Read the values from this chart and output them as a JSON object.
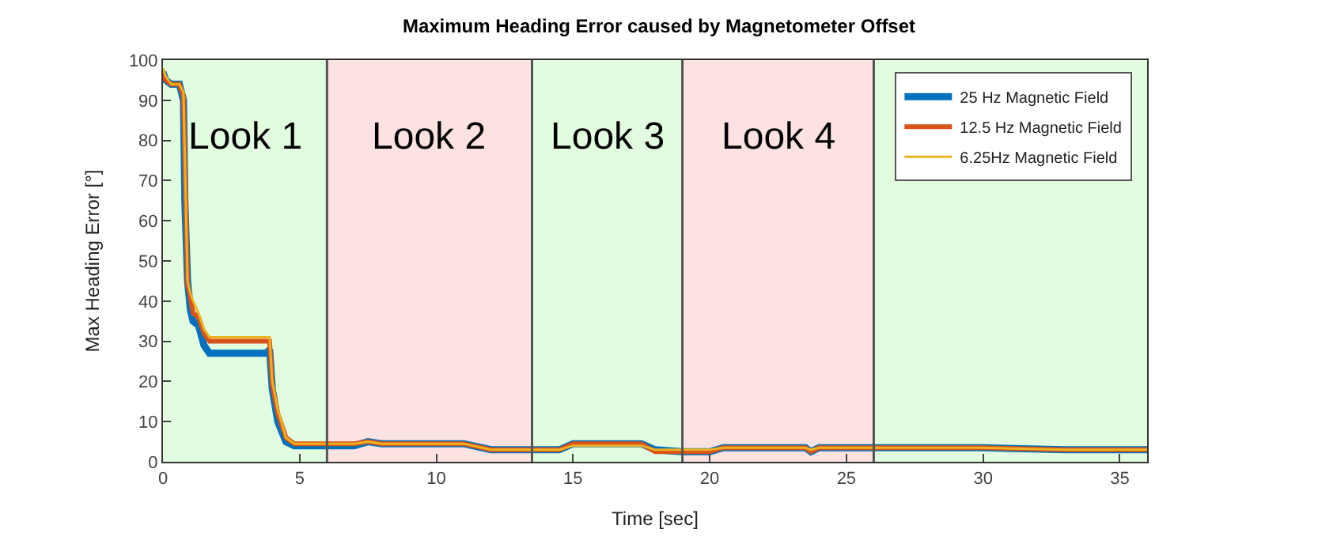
{
  "chart_data": {
    "type": "line",
    "title": "Maximum Heading Error caused by Magnetometer Offset",
    "xlabel": "Time [sec]",
    "ylabel": "Max Heading Error [°]",
    "xlim": [
      0,
      36
    ],
    "xticks": [
      0,
      5,
      10,
      15,
      20,
      25,
      30,
      35
    ],
    "ylim": [
      0,
      100
    ],
    "yticks": [
      0,
      10,
      20,
      30,
      40,
      50,
      60,
      70,
      80,
      90,
      100
    ],
    "grid": false,
    "legend": "top right",
    "line_style": "solid",
    "marker": "none",
    "bands": [
      {
        "axis": "x",
        "from": 0,
        "to": 6,
        "label": "Look 1",
        "color": "#e2fce0"
      },
      {
        "axis": "x",
        "from": 6,
        "to": 13.5,
        "label": "Look 2",
        "color": "#fde2e2"
      },
      {
        "axis": "x",
        "from": 13.5,
        "to": 19,
        "label": "Look 3",
        "color": "#e2fce0"
      },
      {
        "axis": "x",
        "from": 19,
        "to": 26,
        "label": "Look 4",
        "color": "#fde2e2"
      },
      {
        "axis": "x",
        "from": 26,
        "to": 36,
        "color": "#e2fce0"
      }
    ],
    "ref_lines": [
      {
        "axis": "x",
        "value": 6,
        "color": "#555555"
      },
      {
        "axis": "x",
        "value": 13.5,
        "color": "#555555"
      },
      {
        "axis": "x",
        "value": 19,
        "color": "#555555"
      },
      {
        "axis": "x",
        "value": 26,
        "color": "#555555"
      }
    ],
    "series": [
      {
        "name": "25 Hz Magnetic Field",
        "color": "#0072bd",
        "x": [
          0,
          0.1,
          0.3,
          0.6,
          0.75,
          0.8,
          0.9,
          1.0,
          1.1,
          1.3,
          1.5,
          1.7,
          2.5,
          3.8,
          3.9,
          4.0,
          4.2,
          4.5,
          4.8,
          6,
          7,
          7.5,
          8,
          11,
          12,
          13.5,
          14.5,
          15,
          17.5,
          18,
          19,
          20,
          20.5,
          23.5,
          23.7,
          24,
          30,
          33,
          36
        ],
        "values": [
          97,
          95,
          94,
          94,
          90,
          65,
          45,
          38,
          35,
          34,
          29,
          27,
          27,
          27,
          28,
          18,
          10,
          5,
          4,
          4,
          4,
          5,
          4.5,
          4.5,
          3,
          3,
          3,
          4.5,
          4.5,
          3,
          2.5,
          2.5,
          3.5,
          3.5,
          2.5,
          3.5,
          3.5,
          3,
          3
        ]
      },
      {
        "name": "12.5 Hz Magnetic Field",
        "color": "#d95319",
        "x": [
          0,
          0.1,
          0.3,
          0.6,
          0.75,
          0.8,
          0.9,
          1.0,
          1.1,
          1.3,
          1.5,
          1.7,
          2.5,
          3.8,
          3.9,
          4.0,
          4.2,
          4.5,
          4.8,
          6,
          7,
          7.5,
          8,
          11,
          12,
          13.5,
          14.5,
          15,
          17.5,
          18,
          19,
          20,
          20.5,
          23.5,
          23.7,
          24,
          30,
          33,
          36
        ],
        "values": [
          97,
          95,
          94,
          94,
          91,
          75,
          44,
          41,
          37,
          36,
          32,
          30,
          30,
          30,
          30,
          19,
          12,
          6,
          4.5,
          4.5,
          4.5,
          5,
          4.5,
          4.5,
          3,
          3,
          3,
          4.5,
          4.5,
          2.5,
          2.5,
          2.5,
          3.5,
          3.5,
          2.5,
          3.5,
          3.5,
          3,
          3
        ]
      },
      {
        "name": "6.25Hz Magnetic Field",
        "color": "#edb120",
        "x": [
          0,
          0.1,
          0.3,
          0.6,
          0.75,
          0.8,
          0.9,
          1.0,
          1.1,
          1.3,
          1.5,
          1.7,
          2.5,
          3.8,
          3.9,
          4.0,
          4.2,
          4.5,
          4.8,
          6,
          7,
          7.5,
          8,
          11,
          12,
          13.5,
          14.5,
          15,
          17.5,
          18,
          19,
          20,
          20.5,
          23.5,
          23.7,
          24,
          30,
          33,
          36
        ],
        "values": [
          98,
          96,
          94,
          94,
          92,
          76,
          45,
          42,
          40,
          37,
          33,
          31,
          31,
          31,
          31,
          20,
          13,
          6,
          4.5,
          4.5,
          4.5,
          5,
          4.5,
          4.5,
          3,
          3,
          3,
          4,
          4,
          3,
          3,
          3,
          3.5,
          3.5,
          3,
          3.5,
          3.5,
          3,
          3
        ]
      }
    ]
  }
}
